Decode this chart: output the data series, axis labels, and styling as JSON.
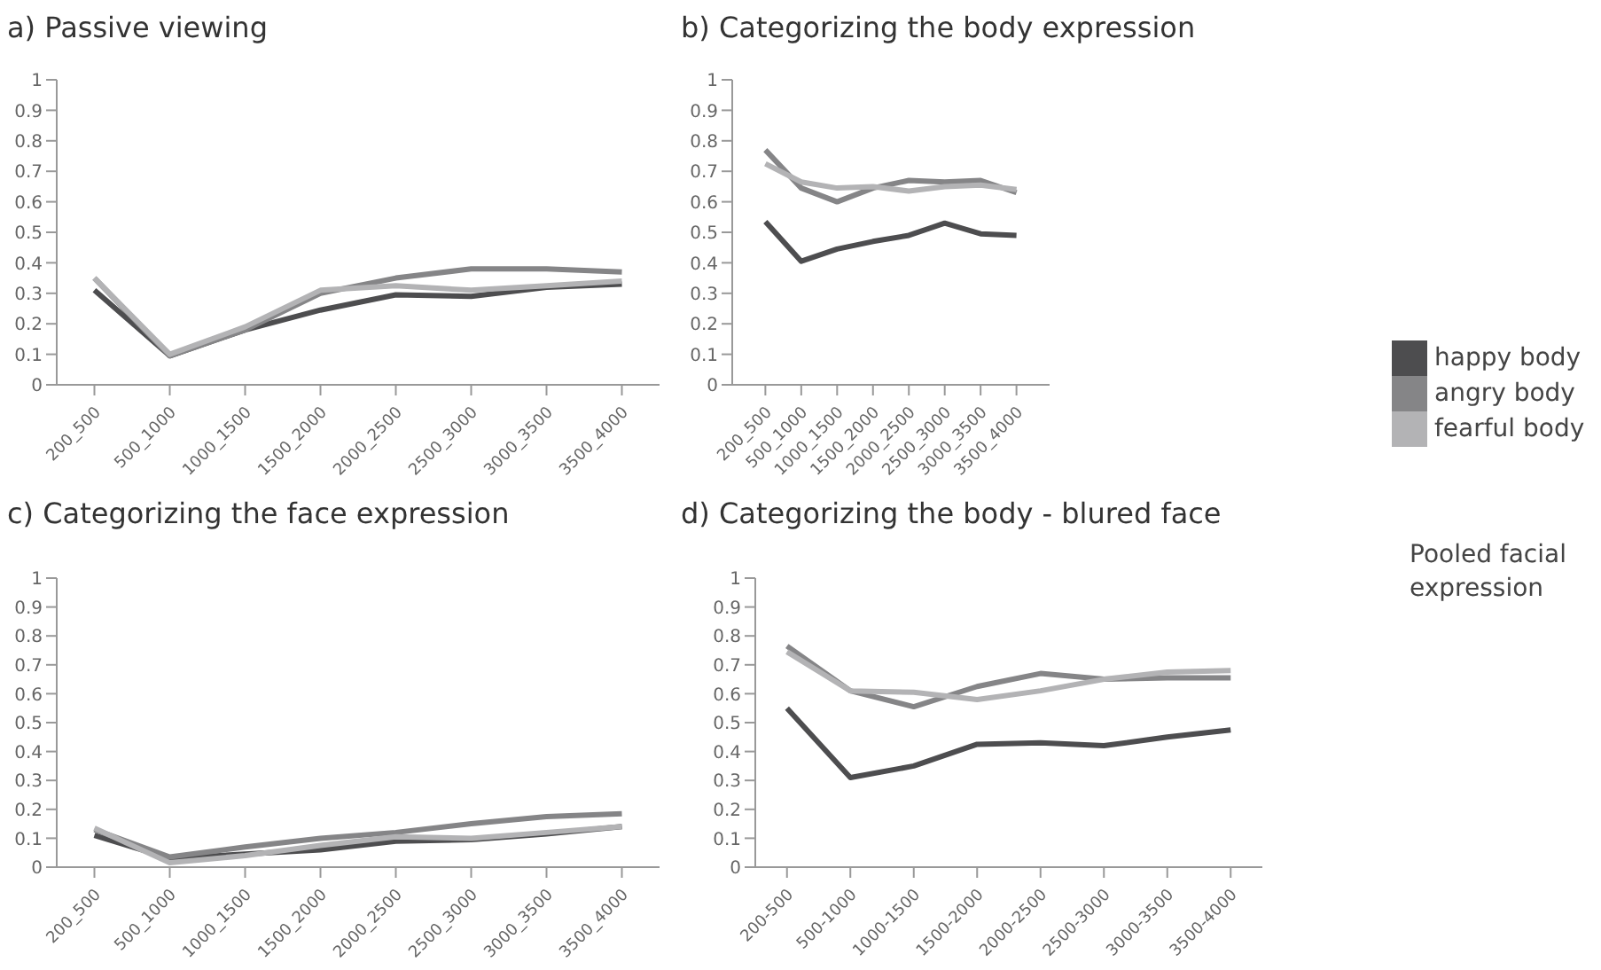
{
  "chart_data": [
    {
      "type": "line",
      "title": "a) Passive viewing",
      "categories": [
        "200_500",
        "500_1000",
        "1000_1500",
        "1500_2000",
        "2000_2500",
        "2500_3000",
        "3000_3500",
        "3500_4000"
      ],
      "ylim": [
        0,
        1
      ],
      "yticks": [
        0,
        0.1,
        0.2,
        0.3,
        0.4,
        0.5,
        0.6,
        0.7,
        0.8,
        0.9,
        1
      ],
      "grid": false,
      "legend": false,
      "marker": "none",
      "series": [
        {
          "color": "#4d4d4f",
          "values": [
            0.31,
            0.095,
            0.18,
            0.245,
            0.295,
            0.29,
            0.32,
            0.33
          ]
        },
        {
          "color": "#858587",
          "values": [
            0.35,
            0.095,
            0.18,
            0.3,
            0.35,
            0.38,
            0.38,
            0.37
          ]
        },
        {
          "color": "#b3b3b5",
          "values": [
            0.35,
            0.1,
            0.19,
            0.31,
            0.325,
            0.31,
            0.325,
            0.34
          ]
        }
      ]
    },
    {
      "type": "line",
      "title": "b) Categorizing the body expression",
      "categories": [
        "200_500",
        "500_1000",
        "1000_1500",
        "1500_2000",
        "2000_2500",
        "2500_3000",
        "3000_3500",
        "3500_4000"
      ],
      "ylim": [
        0,
        1
      ],
      "yticks": [
        0,
        0.1,
        0.2,
        0.3,
        0.4,
        0.5,
        0.6,
        0.7,
        0.8,
        0.9,
        1
      ],
      "grid": false,
      "legend": "right",
      "marker": "none",
      "annotations": [
        "Pooled facial expression"
      ],
      "series": [
        {
          "name": "happy body",
          "color": "#4d4d4f",
          "values": [
            0.535,
            0.405,
            0.445,
            0.47,
            0.49,
            0.53,
            0.495,
            0.49
          ]
        },
        {
          "name": "angry body",
          "color": "#858587",
          "values": [
            0.77,
            0.645,
            0.6,
            0.645,
            0.67,
            0.665,
            0.67,
            0.63
          ]
        },
        {
          "name": "fearful body",
          "color": "#b3b3b5",
          "values": [
            0.725,
            0.665,
            0.645,
            0.65,
            0.635,
            0.65,
            0.655,
            0.64
          ]
        }
      ]
    },
    {
      "type": "line",
      "title": "c) Categorizing the face expression",
      "categories": [
        "200_500",
        "500_1000",
        "1000_1500",
        "1500_2000",
        "2000_2500",
        "2500_3000",
        "3000_3500",
        "3500_4000"
      ],
      "ylim": [
        0,
        1
      ],
      "yticks": [
        0,
        0.1,
        0.2,
        0.3,
        0.4,
        0.5,
        0.6,
        0.7,
        0.8,
        0.9,
        1
      ],
      "grid": false,
      "legend": false,
      "marker": "none",
      "series": [
        {
          "color": "#4d4d4f",
          "values": [
            0.11,
            0.03,
            0.045,
            0.06,
            0.09,
            0.095,
            0.115,
            0.14
          ]
        },
        {
          "color": "#858587",
          "values": [
            0.13,
            0.035,
            0.07,
            0.1,
            0.12,
            0.15,
            0.175,
            0.185
          ]
        },
        {
          "color": "#b3b3b5",
          "values": [
            0.135,
            0.015,
            0.04,
            0.075,
            0.105,
            0.1,
            0.12,
            0.14
          ]
        }
      ]
    },
    {
      "type": "line",
      "title": "d) Categorizing the body - blured face",
      "categories": [
        "200-500",
        "500-1000",
        "1000-1500",
        "1500-2000",
        "2000-2500",
        "2500-3000",
        "3000-3500",
        "3500-4000"
      ],
      "ylim": [
        0,
        1
      ],
      "yticks": [
        0,
        0.1,
        0.2,
        0.3,
        0.4,
        0.5,
        0.6,
        0.7,
        0.8,
        0.9,
        1
      ],
      "grid": false,
      "legend": false,
      "marker": "none",
      "series": [
        {
          "color": "#4d4d4f",
          "values": [
            0.55,
            0.31,
            0.35,
            0.425,
            0.43,
            0.42,
            0.45,
            0.475
          ]
        },
        {
          "color": "#858587",
          "values": [
            0.765,
            0.61,
            0.555,
            0.625,
            0.67,
            0.65,
            0.655,
            0.655
          ]
        },
        {
          "color": "#b3b3b5",
          "values": [
            0.745,
            0.61,
            0.605,
            0.58,
            0.61,
            0.65,
            0.675,
            0.68
          ]
        }
      ]
    }
  ]
}
